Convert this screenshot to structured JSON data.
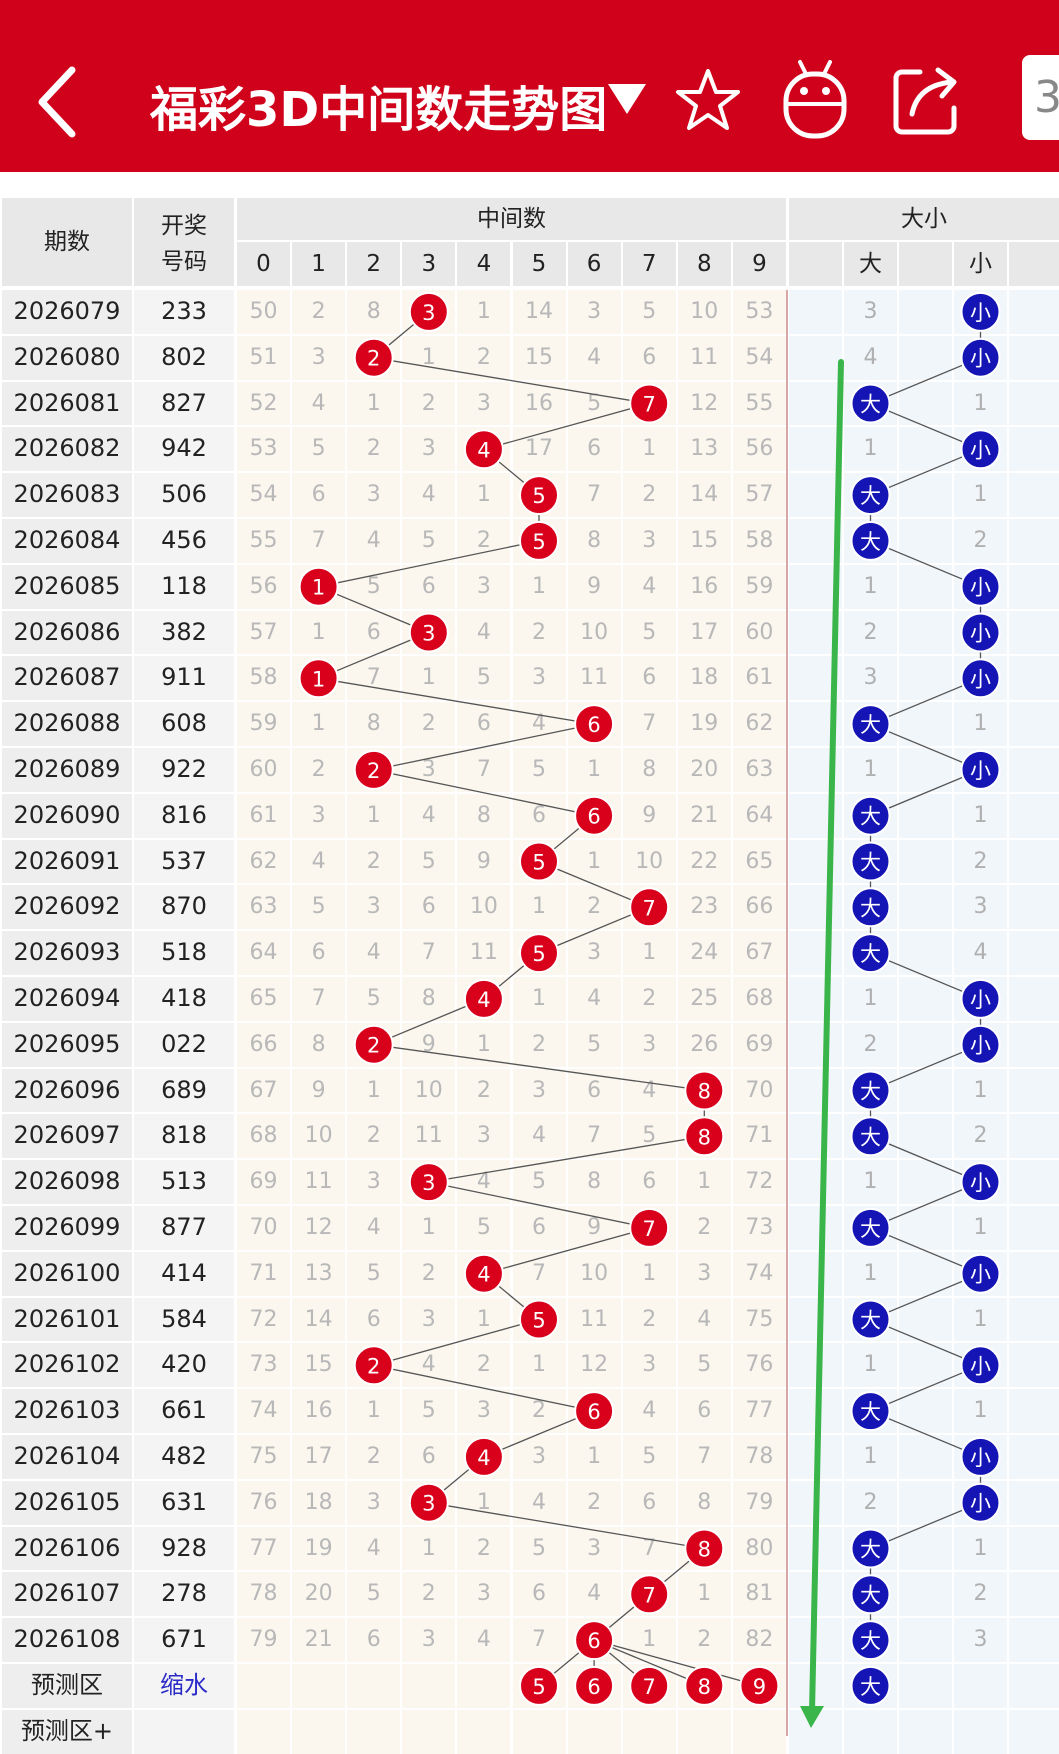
{
  "header": {
    "title": "福彩3D中间数走势图",
    "page_button": "3"
  },
  "table": {
    "col_issue": "期数",
    "col_number_line1": "开奖",
    "col_number_line2": "号码",
    "group_middle": "中间数",
    "group_size": "大小",
    "middle_digits": [
      "0",
      "1",
      "2",
      "3",
      "4",
      "5",
      "6",
      "7",
      "8",
      "9"
    ],
    "size_labels": [
      "大",
      "小"
    ],
    "rows": [
      {
        "issue": "2026079",
        "num": "233",
        "mid": [
          "50",
          "2",
          "8",
          "3",
          "1",
          "14",
          "3",
          "5",
          "10",
          "53"
        ],
        "hit": 3,
        "size": [
          "3",
          "小"
        ],
        "big": false
      },
      {
        "issue": "2026080",
        "num": "802",
        "mid": [
          "51",
          "3",
          "2",
          "1",
          "2",
          "15",
          "4",
          "6",
          "11",
          "54"
        ],
        "hit": 2,
        "size": [
          "4",
          "小"
        ],
        "big": false
      },
      {
        "issue": "2026081",
        "num": "827",
        "mid": [
          "52",
          "4",
          "1",
          "2",
          "3",
          "16",
          "5",
          "7",
          "12",
          "55"
        ],
        "hit": 7,
        "size": [
          "大",
          "1"
        ],
        "big": true
      },
      {
        "issue": "2026082",
        "num": "942",
        "mid": [
          "53",
          "5",
          "2",
          "3",
          "4",
          "17",
          "6",
          "1",
          "13",
          "56"
        ],
        "hit": 4,
        "size": [
          "1",
          "小"
        ],
        "big": false
      },
      {
        "issue": "2026083",
        "num": "506",
        "mid": [
          "54",
          "6",
          "3",
          "4",
          "1",
          "5",
          "7",
          "2",
          "14",
          "57"
        ],
        "hit": 5,
        "size": [
          "大",
          "1"
        ],
        "big": true
      },
      {
        "issue": "2026084",
        "num": "456",
        "mid": [
          "55",
          "7",
          "4",
          "5",
          "2",
          "5",
          "8",
          "3",
          "15",
          "58"
        ],
        "hit": 5,
        "size": [
          "大",
          "2"
        ],
        "big": true
      },
      {
        "issue": "2026085",
        "num": "118",
        "mid": [
          "56",
          "1",
          "5",
          "6",
          "3",
          "1",
          "9",
          "4",
          "16",
          "59"
        ],
        "hit": 1,
        "size": [
          "1",
          "小"
        ],
        "big": false
      },
      {
        "issue": "2026086",
        "num": "382",
        "mid": [
          "57",
          "1",
          "6",
          "3",
          "4",
          "2",
          "10",
          "5",
          "17",
          "60"
        ],
        "hit": 3,
        "size": [
          "2",
          "小"
        ],
        "big": false
      },
      {
        "issue": "2026087",
        "num": "911",
        "mid": [
          "58",
          "1",
          "7",
          "1",
          "5",
          "3",
          "11",
          "6",
          "18",
          "61"
        ],
        "hit": 1,
        "size": [
          "3",
          "小"
        ],
        "big": false
      },
      {
        "issue": "2026088",
        "num": "608",
        "mid": [
          "59",
          "1",
          "8",
          "2",
          "6",
          "4",
          "6",
          "7",
          "19",
          "62"
        ],
        "hit": 6,
        "size": [
          "大",
          "1"
        ],
        "big": true
      },
      {
        "issue": "2026089",
        "num": "922",
        "mid": [
          "60",
          "2",
          "2",
          "3",
          "7",
          "5",
          "1",
          "8",
          "20",
          "63"
        ],
        "hit": 2,
        "size": [
          "1",
          "小"
        ],
        "big": false
      },
      {
        "issue": "2026090",
        "num": "816",
        "mid": [
          "61",
          "3",
          "1",
          "4",
          "8",
          "6",
          "6",
          "9",
          "21",
          "64"
        ],
        "hit": 6,
        "size": [
          "大",
          "1"
        ],
        "big": true
      },
      {
        "issue": "2026091",
        "num": "537",
        "mid": [
          "62",
          "4",
          "2",
          "5",
          "9",
          "5",
          "1",
          "10",
          "22",
          "65"
        ],
        "hit": 5,
        "size": [
          "大",
          "2"
        ],
        "big": true
      },
      {
        "issue": "2026092",
        "num": "870",
        "mid": [
          "63",
          "5",
          "3",
          "6",
          "10",
          "1",
          "2",
          "7",
          "23",
          "66"
        ],
        "hit": 7,
        "size": [
          "大",
          "3"
        ],
        "big": true
      },
      {
        "issue": "2026093",
        "num": "518",
        "mid": [
          "64",
          "6",
          "4",
          "7",
          "11",
          "5",
          "3",
          "1",
          "24",
          "67"
        ],
        "hit": 5,
        "size": [
          "大",
          "4"
        ],
        "big": true
      },
      {
        "issue": "2026094",
        "num": "418",
        "mid": [
          "65",
          "7",
          "5",
          "8",
          "4",
          "1",
          "4",
          "2",
          "25",
          "68"
        ],
        "hit": 4,
        "size": [
          "1",
          "小"
        ],
        "big": false
      },
      {
        "issue": "2026095",
        "num": "022",
        "mid": [
          "66",
          "8",
          "2",
          "9",
          "1",
          "2",
          "5",
          "3",
          "26",
          "69"
        ],
        "hit": 2,
        "size": [
          "2",
          "小"
        ],
        "big": false
      },
      {
        "issue": "2026096",
        "num": "689",
        "mid": [
          "67",
          "9",
          "1",
          "10",
          "2",
          "3",
          "6",
          "4",
          "8",
          "70"
        ],
        "hit": 8,
        "size": [
          "大",
          "1"
        ],
        "big": true
      },
      {
        "issue": "2026097",
        "num": "818",
        "mid": [
          "68",
          "10",
          "2",
          "11",
          "3",
          "4",
          "7",
          "5",
          "8",
          "71"
        ],
        "hit": 8,
        "size": [
          "大",
          "2"
        ],
        "big": true
      },
      {
        "issue": "2026098",
        "num": "513",
        "mid": [
          "69",
          "11",
          "3",
          "3",
          "4",
          "5",
          "8",
          "6",
          "1",
          "72"
        ],
        "hit": 3,
        "size": [
          "1",
          "小"
        ],
        "big": false
      },
      {
        "issue": "2026099",
        "num": "877",
        "mid": [
          "70",
          "12",
          "4",
          "1",
          "5",
          "6",
          "9",
          "7",
          "2",
          "73"
        ],
        "hit": 7,
        "size": [
          "大",
          "1"
        ],
        "big": true
      },
      {
        "issue": "2026100",
        "num": "414",
        "mid": [
          "71",
          "13",
          "5",
          "2",
          "4",
          "7",
          "10",
          "1",
          "3",
          "74"
        ],
        "hit": 4,
        "size": [
          "1",
          "小"
        ],
        "big": false
      },
      {
        "issue": "2026101",
        "num": "584",
        "mid": [
          "72",
          "14",
          "6",
          "3",
          "1",
          "5",
          "11",
          "2",
          "4",
          "75"
        ],
        "hit": 5,
        "size": [
          "大",
          "1"
        ],
        "big": true
      },
      {
        "issue": "2026102",
        "num": "420",
        "mid": [
          "73",
          "15",
          "2",
          "4",
          "2",
          "1",
          "12",
          "3",
          "5",
          "76"
        ],
        "hit": 2,
        "size": [
          "1",
          "小"
        ],
        "big": false
      },
      {
        "issue": "2026103",
        "num": "661",
        "mid": [
          "74",
          "16",
          "1",
          "5",
          "3",
          "2",
          "6",
          "4",
          "6",
          "77"
        ],
        "hit": 6,
        "size": [
          "大",
          "1"
        ],
        "big": true
      },
      {
        "issue": "2026104",
        "num": "482",
        "mid": [
          "75",
          "17",
          "2",
          "6",
          "4",
          "3",
          "1",
          "5",
          "7",
          "78"
        ],
        "hit": 4,
        "size": [
          "1",
          "小"
        ],
        "big": false
      },
      {
        "issue": "2026105",
        "num": "631",
        "mid": [
          "76",
          "18",
          "3",
          "3",
          "1",
          "4",
          "2",
          "6",
          "8",
          "79"
        ],
        "hit": 3,
        "size": [
          "2",
          "小"
        ],
        "big": false
      },
      {
        "issue": "2026106",
        "num": "928",
        "mid": [
          "77",
          "19",
          "4",
          "1",
          "2",
          "5",
          "3",
          "7",
          "8",
          "80"
        ],
        "hit": 8,
        "size": [
          "大",
          "1"
        ],
        "big": true
      },
      {
        "issue": "2026107",
        "num": "278",
        "mid": [
          "78",
          "20",
          "5",
          "2",
          "3",
          "6",
          "4",
          "7",
          "1",
          "81"
        ],
        "hit": 7,
        "size": [
          "大",
          "2"
        ],
        "big": true
      },
      {
        "issue": "2026108",
        "num": "671",
        "mid": [
          "79",
          "21",
          "6",
          "3",
          "4",
          "7",
          "6",
          "1",
          "2",
          "82"
        ],
        "hit": 6,
        "size": [
          "大",
          "3"
        ],
        "big": true
      }
    ],
    "predict": {
      "label": "预测区",
      "link": "缩水",
      "balls": [
        "5",
        "6",
        "7",
        "8",
        "9"
      ],
      "ball_digits": [
        5,
        6,
        7,
        8,
        9
      ],
      "size_ball": "大"
    },
    "predict_plus": {
      "label": "预测区+"
    }
  },
  "colors": {
    "brand_red": "#d0021b",
    "ball_red": "#d8001b",
    "ball_blue": "#1515b5",
    "trend_green": "#3ab54a"
  },
  "icons": {
    "back": "chevron-left-icon",
    "dropdown": "triangle-down-icon",
    "favorite": "star-icon",
    "robot": "robot-icon",
    "share": "share-icon"
  }
}
